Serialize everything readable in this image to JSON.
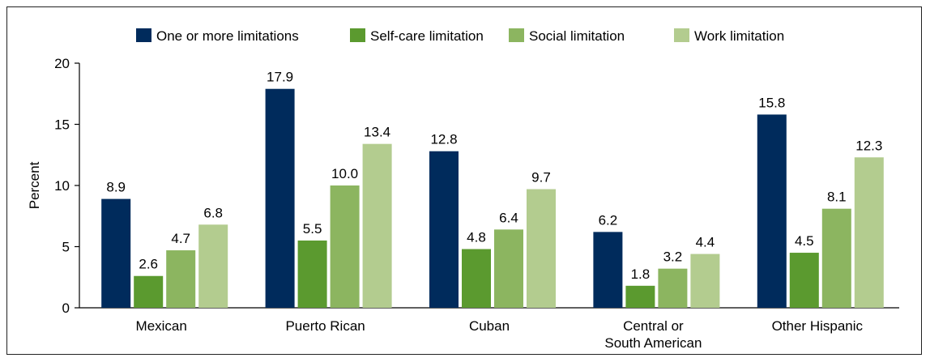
{
  "chart_data": {
    "type": "bar",
    "title": "",
    "xlabel": "",
    "ylabel": "Percent",
    "ylim": [
      0,
      20
    ],
    "yticks": [
      0,
      5,
      10,
      15,
      20
    ],
    "legend_position": "top",
    "grid": false,
    "categories": [
      [
        "Mexican"
      ],
      [
        "Puerto Rican"
      ],
      [
        "Cuban"
      ],
      [
        "Central or",
        "South American"
      ],
      [
        "Other Hispanic"
      ]
    ],
    "series": [
      {
        "name": "One or more limitations",
        "color": "#002b5c",
        "values": [
          8.9,
          17.9,
          12.8,
          6.2,
          15.8
        ],
        "labels": [
          "8.9",
          "17.9",
          "12.8",
          "6.2",
          "15.8"
        ]
      },
      {
        "name": "Self-care limitation",
        "color": "#5b9a2f",
        "values": [
          2.6,
          5.5,
          4.8,
          1.8,
          4.5
        ],
        "labels": [
          "2.6",
          "5.5",
          "4.8",
          "1.8",
          "4.5"
        ]
      },
      {
        "name": "Social limitation",
        "color": "#8cb560",
        "values": [
          4.7,
          10.0,
          6.4,
          3.2,
          8.1
        ],
        "labels": [
          "4.7",
          "10.0",
          "6.4",
          "3.2",
          "8.1"
        ]
      },
      {
        "name": "Work limitation",
        "color": "#b3cc8f",
        "values": [
          6.8,
          13.4,
          9.7,
          4.4,
          12.3
        ],
        "labels": [
          "6.8",
          "13.4",
          "9.7",
          "4.4",
          "12.3"
        ]
      }
    ]
  }
}
